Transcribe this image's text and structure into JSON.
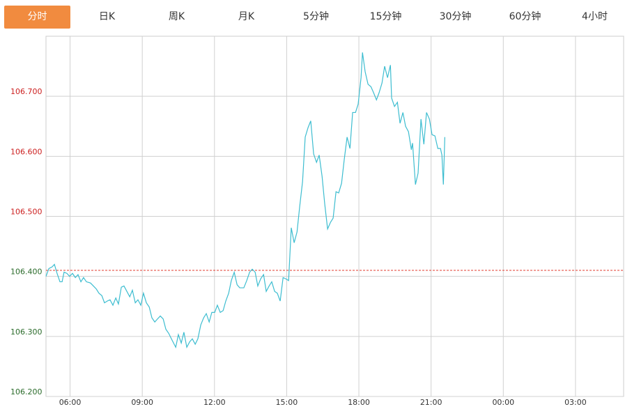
{
  "tabs": [
    "分时",
    "日K",
    "周K",
    "月K",
    "5分钟",
    "15分钟",
    "30分钟",
    "60分钟",
    "4小时"
  ],
  "active_tab": 0,
  "chart_data": {
    "type": "line",
    "xlim": [
      5,
      29
    ],
    "xticks": [
      {
        "value": 6,
        "label": "06:00"
      },
      {
        "value": 9,
        "label": "09:00"
      },
      {
        "value": 12,
        "label": "12:00"
      },
      {
        "value": 15,
        "label": "15:00"
      },
      {
        "value": 18,
        "label": "18:00"
      },
      {
        "value": 21,
        "label": "21:00"
      },
      {
        "value": 24,
        "label": "00:00"
      },
      {
        "value": 27,
        "label": "03:00"
      }
    ],
    "ylim": [
      106.2,
      106.8
    ],
    "yticks": [
      {
        "value": 106.2,
        "label": "106.200"
      },
      {
        "value": 106.3,
        "label": "106.300"
      },
      {
        "value": 106.4,
        "label": "106.400"
      },
      {
        "value": 106.5,
        "label": "106.500"
      },
      {
        "value": 106.6,
        "label": "106.600"
      },
      {
        "value": 106.7,
        "label": "106.700"
      }
    ],
    "grid": true,
    "reference": 106.41,
    "reference_color": "#e03b2e",
    "up_color": "#cc1f1f",
    "down_color": "#2a6b2a",
    "series": [
      {
        "color": "#3dbdd0",
        "x": [
          5.0,
          5.12,
          5.26,
          5.35,
          5.46,
          5.58,
          5.67,
          5.75,
          5.87,
          5.98,
          6.1,
          6.22,
          6.33,
          6.45,
          6.56,
          6.68,
          6.85,
          6.97,
          7.09,
          7.2,
          7.32,
          7.43,
          7.55,
          7.66,
          7.78,
          7.9,
          8.01,
          8.13,
          8.24,
          8.36,
          8.48,
          8.59,
          8.71,
          8.82,
          8.94,
          9.05,
          9.17,
          9.29,
          9.4,
          9.52,
          9.63,
          9.75,
          9.87,
          9.98,
          10.1,
          10.21,
          10.39,
          10.5,
          10.62,
          10.73,
          10.85,
          10.97,
          11.08,
          11.2,
          11.31,
          11.43,
          11.55,
          11.66,
          11.78,
          11.89,
          12.01,
          12.12,
          12.24,
          12.36,
          12.47,
          12.59,
          12.7,
          12.82,
          12.94,
          13.05,
          13.22,
          13.34,
          13.46,
          13.57,
          13.69,
          13.8,
          13.92,
          14.04,
          14.15,
          14.27,
          14.38,
          14.5,
          14.61,
          14.73,
          14.85,
          14.96,
          15.08,
          15.19,
          15.31,
          15.43,
          15.54,
          15.66,
          15.77,
          15.89,
          16.0,
          16.12,
          16.24,
          16.35,
          16.47,
          16.58,
          16.7,
          16.82,
          16.93,
          17.05,
          17.16,
          17.28,
          17.39,
          17.51,
          17.63,
          17.74,
          17.86,
          17.97,
          18.09,
          18.15,
          18.26,
          18.38,
          18.5,
          18.61,
          18.73,
          18.84,
          18.96,
          19.07,
          19.19,
          19.31,
          19.36,
          19.48,
          19.6,
          19.71,
          19.83,
          19.94,
          20.06,
          20.18,
          20.23,
          20.35,
          20.46,
          20.58,
          20.7,
          20.81,
          20.93,
          21.04,
          21.16,
          21.28,
          21.39,
          21.45,
          21.51,
          21.57
        ],
        "values": [
          106.4,
          106.413,
          106.416,
          106.42,
          106.405,
          106.391,
          106.391,
          106.407,
          106.405,
          106.4,
          106.405,
          106.398,
          106.403,
          106.391,
          106.398,
          106.391,
          106.389,
          106.384,
          106.379,
          106.372,
          106.368,
          106.356,
          106.359,
          106.361,
          106.352,
          106.364,
          106.354,
          106.382,
          106.384,
          106.375,
          106.366,
          106.377,
          106.356,
          106.361,
          106.352,
          106.372,
          106.356,
          106.349,
          106.331,
          106.324,
          106.329,
          106.334,
          106.329,
          106.312,
          106.305,
          106.296,
          106.282,
          106.303,
          106.289,
          106.307,
          106.282,
          106.291,
          106.296,
          106.287,
          106.296,
          106.319,
          106.331,
          106.338,
          106.324,
          106.34,
          106.34,
          106.352,
          106.34,
          106.343,
          106.359,
          106.372,
          106.393,
          106.407,
          106.386,
          106.381,
          106.381,
          106.393,
          106.407,
          106.412,
          106.407,
          106.384,
          106.396,
          106.403,
          106.375,
          106.384,
          106.391,
          106.375,
          106.372,
          106.359,
          106.398,
          106.396,
          106.393,
          106.481,
          106.456,
          106.474,
          106.516,
          106.558,
          106.632,
          106.648,
          106.659,
          106.604,
          106.59,
          106.602,
          106.567,
          106.521,
          106.479,
          106.49,
          106.497,
          106.541,
          106.539,
          106.555,
          106.594,
          106.632,
          106.613,
          106.673,
          106.673,
          106.687,
          106.731,
          106.773,
          106.741,
          106.72,
          106.716,
          106.706,
          106.694,
          106.706,
          106.722,
          106.75,
          106.731,
          106.752,
          106.697,
          106.683,
          106.69,
          106.655,
          106.673,
          106.65,
          106.641,
          106.611,
          106.622,
          106.553,
          106.572,
          106.662,
          106.62,
          106.673,
          106.662,
          106.636,
          106.634,
          106.613,
          106.613,
          106.602,
          106.553,
          106.632
        ]
      }
    ]
  }
}
